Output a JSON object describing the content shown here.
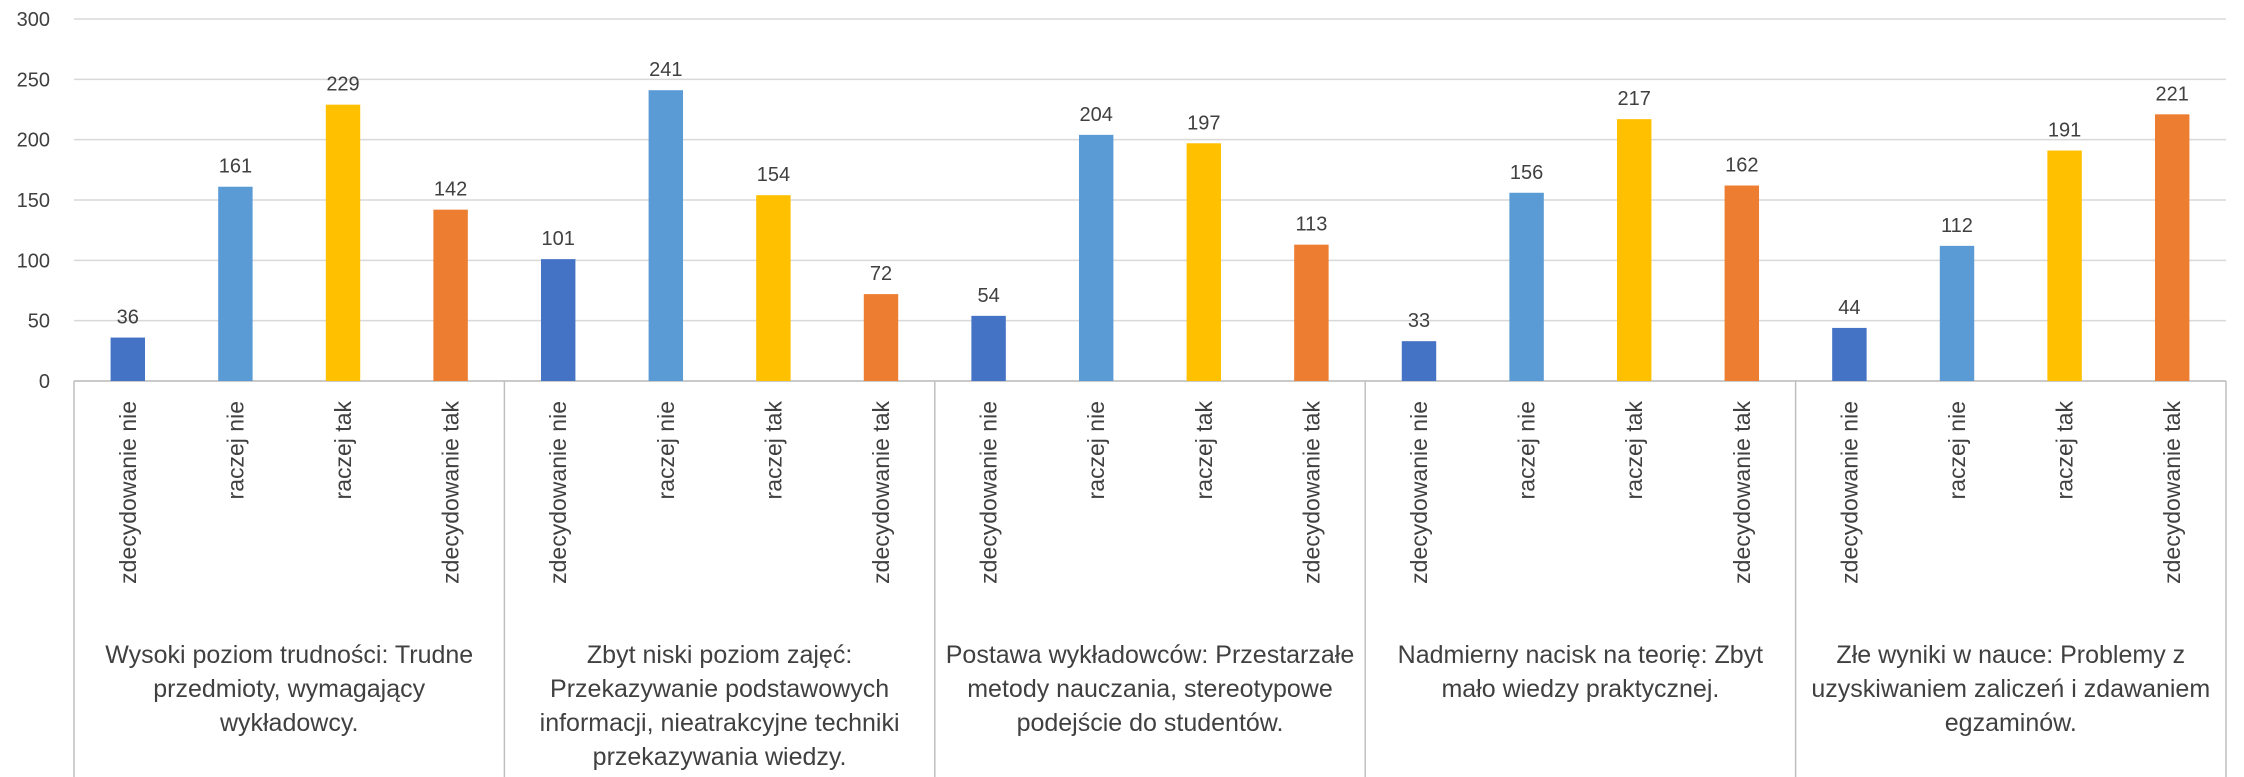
{
  "chart_data": {
    "type": "bar",
    "ylim": [
      0,
      300
    ],
    "yticks": [
      0,
      50,
      100,
      150,
      200,
      250,
      300
    ],
    "grid": true,
    "colors": [
      "#4472c4",
      "#5b9bd5",
      "#ffc000",
      "#ed7d31"
    ],
    "groups": [
      {
        "label": "Wysoki poziom trudności: Trudne przedmioty, wymagający wykładowcy.",
        "categories": [
          "zdecydowanie nie",
          "raczej nie",
          "raczej tak",
          "zdecydowanie tak"
        ],
        "values": [
          36,
          161,
          229,
          142
        ]
      },
      {
        "label": "Zbyt niski poziom zajęć: Przekazywanie podstawowych informacji, nieatrakcyjne techniki przekazywania wiedzy.",
        "categories": [
          "zdecydowanie nie",
          "raczej nie",
          "raczej tak",
          "zdecydowanie tak"
        ],
        "values": [
          101,
          241,
          154,
          72
        ]
      },
      {
        "label": "Postawa wykładowców: Przestarzałe metody nauczania, stereotypowe podejście do studentów.",
        "categories": [
          "zdecydowanie nie",
          "raczej nie",
          "raczej tak",
          "zdecydowanie tak"
        ],
        "values": [
          54,
          204,
          197,
          113
        ]
      },
      {
        "label": "Nadmierny nacisk na teorię: Zbyt mało wiedzy praktycznej.",
        "categories": [
          "zdecydowanie nie",
          "raczej nie",
          "raczej tak",
          "zdecydowanie tak"
        ],
        "values": [
          33,
          156,
          217,
          162
        ]
      },
      {
        "label": "Złe wyniki w nauce: Problemy z uzyskiwaniem zaliczeń i zdawaniem egzaminów.",
        "categories": [
          "zdecydowanie nie",
          "raczej nie",
          "raczej tak",
          "zdecydowanie tak"
        ],
        "values": [
          44,
          112,
          191,
          221
        ]
      }
    ]
  }
}
